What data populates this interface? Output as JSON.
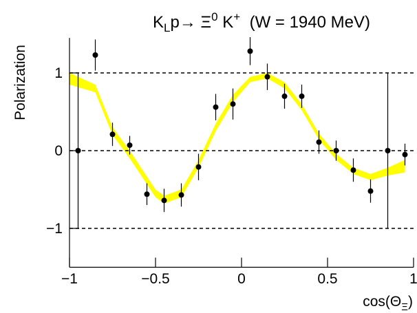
{
  "chart_data": {
    "type": "scatter",
    "title": [
      "K",
      "L",
      "p→ Ξ",
      "0",
      " K",
      "+",
      "  (W = 1940 MeV)"
    ],
    "y_label": "Polarization",
    "x_label": [
      "cos(Θ",
      "Ξ",
      ")"
    ],
    "x": [
      -0.95,
      -0.85,
      -0.75,
      -0.65,
      -0.55,
      -0.45,
      -0.35,
      -0.25,
      -0.15,
      -0.05,
      0.05,
      0.15,
      0.25,
      0.35,
      0.45,
      0.55,
      0.65,
      0.75,
      0.85,
      0.95
    ],
    "values": [
      0,
      1.23,
      0.21,
      0.07,
      -0.56,
      -0.64,
      -0.57,
      -0.21,
      0.56,
      0.6,
      1.28,
      0.95,
      0.7,
      0.7,
      0.11,
      0.0,
      -0.25,
      -0.52,
      0,
      -0.05
    ],
    "errors": [
      1,
      0.2,
      0.15,
      0.12,
      0.14,
      0.15,
      0.15,
      0.17,
      0.17,
      0.2,
      0.18,
      0.17,
      0.16,
      0.15,
      0.15,
      0.13,
      0.15,
      0.15,
      1,
      0.14
    ],
    "color": "#000000",
    "band": {
      "color": "#ffff00",
      "x": [
        -1,
        -0.85,
        -0.75,
        -0.65,
        -0.5,
        -0.45,
        -0.35,
        -0.25,
        -0.15,
        -0.05,
        0.05,
        0.15,
        0.25,
        0.35,
        0.45,
        0.55,
        0.65,
        0.75,
        0.85,
        0.95
      ],
      "upper": [
        1.0,
        0.85,
        0.3,
        0.0,
        -0.5,
        -0.58,
        -0.5,
        -0.12,
        0.35,
        0.72,
        0.95,
        1.0,
        0.88,
        0.6,
        0.22,
        -0.04,
        -0.22,
        -0.3,
        -0.22,
        -0.12
      ],
      "lower": [
        0.85,
        0.75,
        0.2,
        -0.1,
        -0.6,
        -0.68,
        -0.6,
        -0.22,
        0.25,
        0.62,
        0.88,
        0.93,
        0.8,
        0.52,
        0.14,
        -0.12,
        -0.3,
        -0.38,
        -0.32,
        -0.28
      ]
    },
    "xlim": [
      -1,
      1
    ],
    "ylim": [
      -1.5,
      1.45
    ],
    "xticks": [
      {
        "value": -1,
        "label": "−1"
      },
      {
        "value": -0.5,
        "label": "−0.5"
      },
      0,
      0.5,
      1
    ],
    "yticks": [
      {
        "value": -1,
        "label": "−1"
      },
      0,
      1
    ],
    "grid": true
  }
}
